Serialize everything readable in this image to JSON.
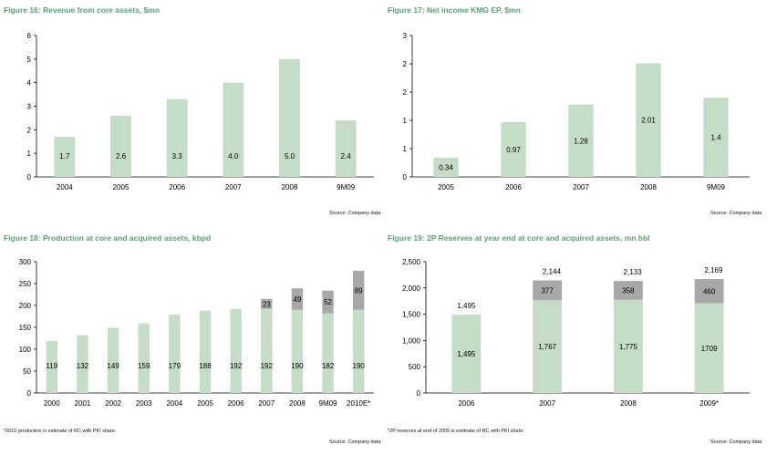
{
  "charts": {
    "c16": {
      "title": "Figure 16: Revenue from core assets, $mn",
      "source": "Source: Company data",
      "chart_data": {
        "type": "bar",
        "categories": [
          "2004",
          "2005",
          "2006",
          "2007",
          "2008",
          "9M09"
        ],
        "values": [
          1.7,
          2.6,
          3.3,
          4.0,
          5.0,
          2.4
        ],
        "labels": [
          "1.7",
          "2.6",
          "3.3",
          "4.0",
          "5.0",
          "2.4"
        ],
        "yticks": [
          "0",
          "1",
          "2",
          "3",
          "4",
          "5",
          "6"
        ],
        "ylim": [
          0,
          6
        ]
      }
    },
    "c17": {
      "title": "Figure 17: Net income KMG EP, $mn",
      "source": "Source: Company data",
      "chart_data": {
        "type": "bar",
        "categories": [
          "2005",
          "2006",
          "2007",
          "2008",
          "9M09"
        ],
        "values": [
          0.34,
          0.97,
          1.28,
          2.01,
          1.4
        ],
        "labels": [
          "0.34",
          "0.97",
          "1.28",
          "2.01",
          "1.4"
        ],
        "yticks": [
          "0",
          "1",
          "1",
          "2",
          "2",
          "3"
        ],
        "ylim": [
          0,
          2.5
        ]
      }
    },
    "c18": {
      "title": "Figure 18: Production at core and acquired assets, kbpd",
      "note": "*2010 production is estimate of RC with PKI share.",
      "source": "Source: Company data",
      "chart_data": {
        "type": "bar",
        "stacked": true,
        "categories": [
          "2000",
          "2001",
          "2002",
          "2003",
          "2004",
          "2005",
          "2006",
          "2007",
          "2008",
          "9M09",
          "2010E*"
        ],
        "series": [
          {
            "values": [
              119,
              132,
              149,
              159,
              179,
              188,
              192,
              192,
              190,
              182,
              190
            ],
            "labels": [
              "119",
              "132",
              "149",
              "159",
              "179",
              "188",
              "192",
              "192",
              "190",
              "182",
              "190"
            ]
          },
          {
            "values": [
              0,
              0,
              0,
              0,
              0,
              0,
              0,
              23,
              49,
              52,
              89
            ],
            "labels": [
              "",
              "",
              "",
              "",
              "",
              "",
              "",
              "23",
              "49",
              "52",
              "89"
            ]
          }
        ],
        "yticks": [
          "0",
          "50",
          "100",
          "150",
          "200",
          "250",
          "300"
        ],
        "ylim": [
          0,
          300
        ]
      }
    },
    "c19": {
      "title": "Figure 19: 2P Reserves at year end at core and acquired assets, mn bbl",
      "note": "*2P reserves at end of 2009 is estimate of RC with PKI share.",
      "source": "Source: Company data",
      "chart_data": {
        "type": "bar",
        "stacked": true,
        "categories": [
          "2006",
          "2007",
          "2008",
          "2009*"
        ],
        "series": [
          {
            "values": [
              1495,
              1767,
              1775,
              1709
            ],
            "labels": [
              "1,495",
              "1,767",
              "1,775",
              "1709"
            ]
          },
          {
            "values": [
              0,
              377,
              358,
              460
            ],
            "labels": [
              "",
              "377",
              "358",
              "460"
            ]
          }
        ],
        "totals": [
          "1,495",
          "2,144",
          "2,133",
          "2,169"
        ],
        "yticks": [
          "0",
          "500",
          "1,000",
          "1,500",
          "2,000",
          "2,500"
        ],
        "ylim": [
          0,
          2500
        ]
      }
    }
  },
  "colors": {
    "core": "#c5dcc7",
    "acquired": "#a8a8a8",
    "title": "#5aa070",
    "axis": "#000000"
  }
}
